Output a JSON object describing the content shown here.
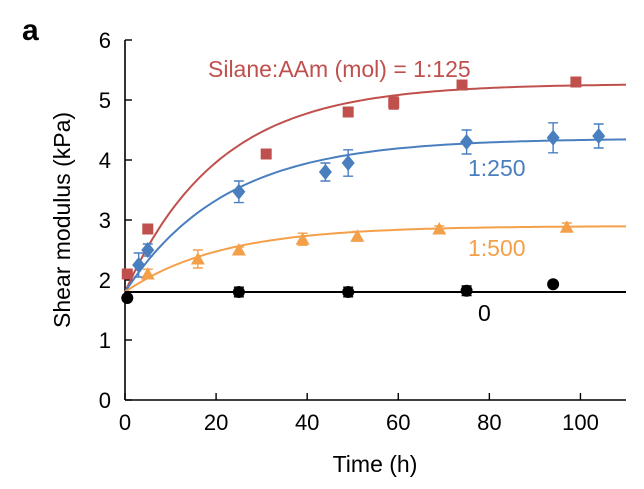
{
  "panel_label": "a",
  "colors": {
    "red": "#c0504d",
    "blue": "#4a7fbf",
    "orange": "#f4a04a",
    "black": "#000000"
  },
  "chart_data": {
    "type": "scatter",
    "title": "",
    "xlabel": "Time (h)",
    "ylabel": "Shear modulus (kPa)",
    "xlim": [
      0,
      110
    ],
    "ylim": [
      0,
      6
    ],
    "xticks": [
      0,
      20,
      40,
      60,
      80,
      100
    ],
    "yticks": [
      0,
      1,
      2,
      3,
      4,
      5,
      6
    ],
    "grid": false,
    "legend": "none",
    "annotations": [
      "Silane:AAm (mol) = 1:125",
      "1:250",
      "1:500",
      "0"
    ],
    "series": [
      {
        "name": "Silane:AAm (mol) = 1:125",
        "color": "#c0504d",
        "marker": "square",
        "points": [
          {
            "x": 0.5,
            "y": 2.1,
            "err": 0
          },
          {
            "x": 5,
            "y": 2.85,
            "err": 0
          },
          {
            "x": 31,
            "y": 4.1,
            "err": 0
          },
          {
            "x": 49,
            "y": 4.8,
            "err": 0
          },
          {
            "x": 59,
            "y": 4.95,
            "err": 0.1
          },
          {
            "x": 74,
            "y": 5.25,
            "err": 0
          },
          {
            "x": 99,
            "y": 5.3,
            "err": 0
          }
        ],
        "fit": {
          "y0": 1.8,
          "ymax": 5.27,
          "tau": 20.5
        }
      },
      {
        "name": "1:250",
        "color": "#4a7fbf",
        "marker": "diamond",
        "points": [
          {
            "x": 3,
            "y": 2.25,
            "err": 0.2
          },
          {
            "x": 5,
            "y": 2.5,
            "err": 0.1
          },
          {
            "x": 25,
            "y": 3.47,
            "err": 0.18
          },
          {
            "x": 44,
            "y": 3.8,
            "err": 0.15
          },
          {
            "x": 49,
            "y": 3.95,
            "err": 0.22
          },
          {
            "x": 75,
            "y": 4.3,
            "err": 0.2
          },
          {
            "x": 94,
            "y": 4.37,
            "err": 0.25
          },
          {
            "x": 104,
            "y": 4.4,
            "err": 0.2
          }
        ],
        "fit": {
          "y0": 1.8,
          "ymax": 4.36,
          "tau": 22
        }
      },
      {
        "name": "1:500",
        "color": "#f4a04a",
        "marker": "triangle",
        "points": [
          {
            "x": 5,
            "y": 2.1,
            "err": 0.08
          },
          {
            "x": 16,
            "y": 2.35,
            "err": 0.15
          },
          {
            "x": 25,
            "y": 2.5,
            "err": 0.05
          },
          {
            "x": 39,
            "y": 2.68,
            "err": 0.1
          },
          {
            "x": 51,
            "y": 2.73,
            "err": 0.08
          },
          {
            "x": 69,
            "y": 2.85,
            "err": 0.05
          },
          {
            "x": 97,
            "y": 2.88,
            "err": 0.07
          }
        ],
        "fit": {
          "y0": 1.8,
          "ymax": 2.9,
          "tau": 21
        }
      },
      {
        "name": "0",
        "color": "#000000",
        "marker": "circle",
        "points": [
          {
            "x": 0.5,
            "y": 1.7,
            "err": 0
          },
          {
            "x": 25,
            "y": 1.8,
            "err": 0.08
          },
          {
            "x": 49,
            "y": 1.8,
            "err": 0.08
          },
          {
            "x": 75,
            "y": 1.82,
            "err": 0.08
          },
          {
            "x": 94,
            "y": 1.93,
            "err": 0
          }
        ],
        "fit": {
          "y0": 1.8,
          "ymax": 1.8,
          "tau": 1
        }
      }
    ]
  }
}
